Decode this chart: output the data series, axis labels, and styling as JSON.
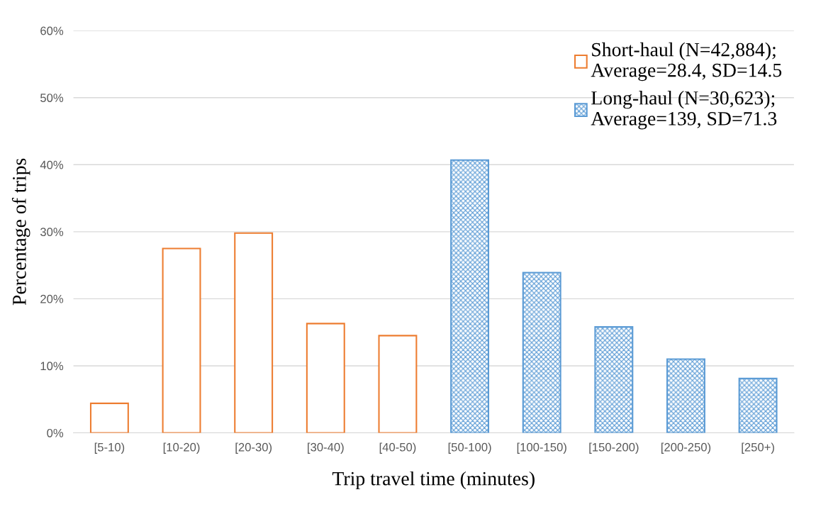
{
  "chart_data": {
    "type": "bar",
    "xlabel": "Trip travel time (minutes)",
    "ylabel": "Percentage of trips",
    "categories": [
      "[5-10)",
      "[10-20)",
      "[20-30)",
      "[30-40)",
      "[40-50)",
      "[50-100)",
      "[100-150)",
      "[150-200)",
      "[200-250)",
      "[250+)"
    ],
    "series": [
      {
        "name": "Short-haul (N=42,884);\nAverage=28.4, SD=14.5",
        "color": "#ed7d31",
        "values": [
          4.4,
          27.5,
          29.8,
          16.3,
          14.5,
          null,
          null,
          null,
          null,
          null
        ]
      },
      {
        "name": "Long-haul (N=30,623);\nAverage=139, SD=71.3",
        "color": "#5b9bd5",
        "values": [
          null,
          null,
          null,
          null,
          null,
          40.7,
          23.9,
          15.8,
          11.0,
          8.1
        ]
      }
    ],
    "ylim": [
      0,
      60
    ],
    "yticks": [
      {
        "value": 0,
        "label": "0%"
      },
      {
        "value": 10,
        "label": "10%"
      },
      {
        "value": 20,
        "label": "20%"
      },
      {
        "value": 30,
        "label": "30%"
      },
      {
        "value": 40,
        "label": "40%"
      },
      {
        "value": 50,
        "label": "50%"
      },
      {
        "value": 60,
        "label": "60%"
      }
    ],
    "grid": "y",
    "legend": "top right"
  }
}
